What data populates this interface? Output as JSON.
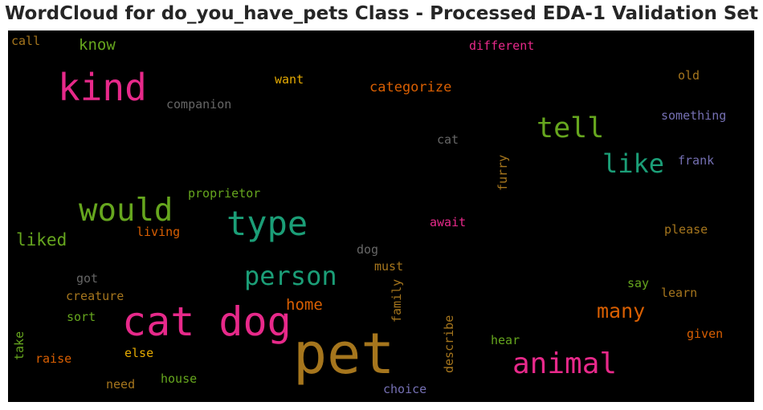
{
  "chart_data": {
    "type": "wordcloud",
    "title": "WordCloud for do_you_have_pets Class - Processed EDA-1 Validation Set",
    "background": "#000000",
    "words": [
      {
        "text": "pet",
        "weight": 1.0,
        "color": "#a6761d",
        "vertical": false
      },
      {
        "text": "cat dog",
        "weight": 0.72,
        "color": "#e7298a",
        "vertical": false
      },
      {
        "text": "kind",
        "weight": 0.66,
        "color": "#e7298a",
        "vertical": false
      },
      {
        "text": "type",
        "weight": 0.6,
        "color": "#1b9e77",
        "vertical": false
      },
      {
        "text": "would",
        "weight": 0.55,
        "color": "#66a61e",
        "vertical": false
      },
      {
        "text": "animal",
        "weight": 0.52,
        "color": "#e7298a",
        "vertical": false
      },
      {
        "text": "tell",
        "weight": 0.5,
        "color": "#66a61e",
        "vertical": false
      },
      {
        "text": "person",
        "weight": 0.45,
        "color": "#1b9e77",
        "vertical": false
      },
      {
        "text": "like",
        "weight": 0.45,
        "color": "#1b9e77",
        "vertical": false
      },
      {
        "text": "many",
        "weight": 0.36,
        "color": "#d95f02",
        "vertical": false
      },
      {
        "text": "liked",
        "weight": 0.3,
        "color": "#66a61e",
        "vertical": false
      },
      {
        "text": "home",
        "weight": 0.27,
        "color": "#d95f02",
        "vertical": false
      },
      {
        "text": "know",
        "weight": 0.27,
        "color": "#66a61e",
        "vertical": false
      },
      {
        "text": "categorize",
        "weight": 0.24,
        "color": "#d95f02",
        "vertical": false
      },
      {
        "text": "different",
        "weight": 0.22,
        "color": "#e7298a",
        "vertical": false
      },
      {
        "text": "want",
        "weight": 0.22,
        "color": "#e6ab02",
        "vertical": false
      },
      {
        "text": "companion",
        "weight": 0.22,
        "color": "#666666",
        "vertical": false
      },
      {
        "text": "something",
        "weight": 0.22,
        "color": "#7570b3",
        "vertical": false
      },
      {
        "text": "cat",
        "weight": 0.22,
        "color": "#666666",
        "vertical": false
      },
      {
        "text": "frank",
        "weight": 0.22,
        "color": "#7570b3",
        "vertical": false
      },
      {
        "text": "proprietor",
        "weight": 0.22,
        "color": "#66a61e",
        "vertical": false
      },
      {
        "text": "await",
        "weight": 0.22,
        "color": "#e7298a",
        "vertical": false
      },
      {
        "text": "living",
        "weight": 0.22,
        "color": "#d95f02",
        "vertical": false
      },
      {
        "text": "please",
        "weight": 0.22,
        "color": "#a6761d",
        "vertical": false
      },
      {
        "text": "dog",
        "weight": 0.22,
        "color": "#666666",
        "vertical": false
      },
      {
        "text": "must",
        "weight": 0.22,
        "color": "#a6761d",
        "vertical": false
      },
      {
        "text": "got",
        "weight": 0.22,
        "color": "#666666",
        "vertical": false
      },
      {
        "text": "creature",
        "weight": 0.22,
        "color": "#a6761d",
        "vertical": false
      },
      {
        "text": "sort",
        "weight": 0.22,
        "color": "#66a61e",
        "vertical": false
      },
      {
        "text": "say",
        "weight": 0.22,
        "color": "#66a61e",
        "vertical": false
      },
      {
        "text": "learn",
        "weight": 0.22,
        "color": "#a6761d",
        "vertical": false
      },
      {
        "text": "given",
        "weight": 0.22,
        "color": "#d95f02",
        "vertical": false
      },
      {
        "text": "hear",
        "weight": 0.22,
        "color": "#66a61e",
        "vertical": false
      },
      {
        "text": "raise",
        "weight": 0.22,
        "color": "#d95f02",
        "vertical": false
      },
      {
        "text": "else",
        "weight": 0.22,
        "color": "#e6ab02",
        "vertical": false
      },
      {
        "text": "house",
        "weight": 0.22,
        "color": "#66a61e",
        "vertical": false
      },
      {
        "text": "need",
        "weight": 0.22,
        "color": "#a6761d",
        "vertical": false
      },
      {
        "text": "choice",
        "weight": 0.22,
        "color": "#7570b3",
        "vertical": false
      },
      {
        "text": "old",
        "weight": 0.22,
        "color": "#a6761d",
        "vertical": false
      },
      {
        "text": "call",
        "weight": 0.2,
        "color": "#a6761d",
        "vertical": false
      },
      {
        "text": "furry",
        "weight": 0.22,
        "color": "#a6761d",
        "vertical": true
      },
      {
        "text": "family",
        "weight": 0.22,
        "color": "#a6761d",
        "vertical": true
      },
      {
        "text": "describe",
        "weight": 0.22,
        "color": "#a6761d",
        "vertical": true
      },
      {
        "text": "take",
        "weight": 0.22,
        "color": "#66a61e",
        "vertical": true
      }
    ]
  }
}
